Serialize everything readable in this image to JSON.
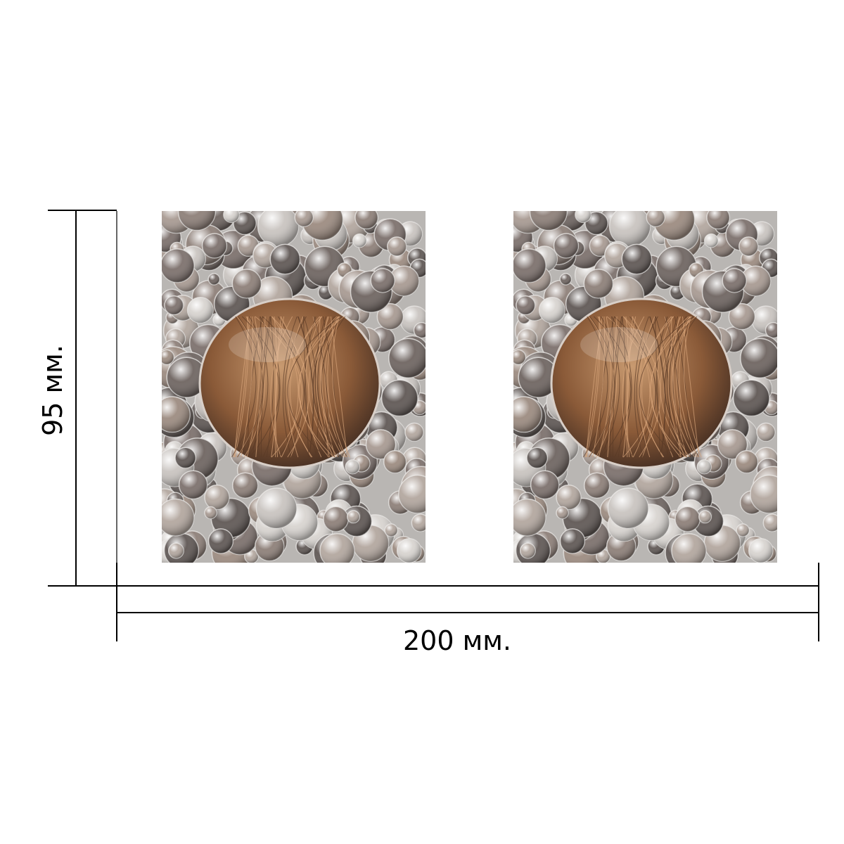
{
  "dimensions": {
    "height_label": "95 мм.",
    "width_label": "200 мм."
  },
  "panels": [
    {
      "name": "left",
      "content": "bubbles-with-amber-drop-image"
    },
    {
      "name": "right",
      "content": "bubbles-with-amber-drop-image"
    }
  ],
  "colors": {
    "background": "#ffffff",
    "lines": "#000000",
    "bubble_base": "#b9b6b3",
    "drop_amber": "#9a6a45"
  }
}
